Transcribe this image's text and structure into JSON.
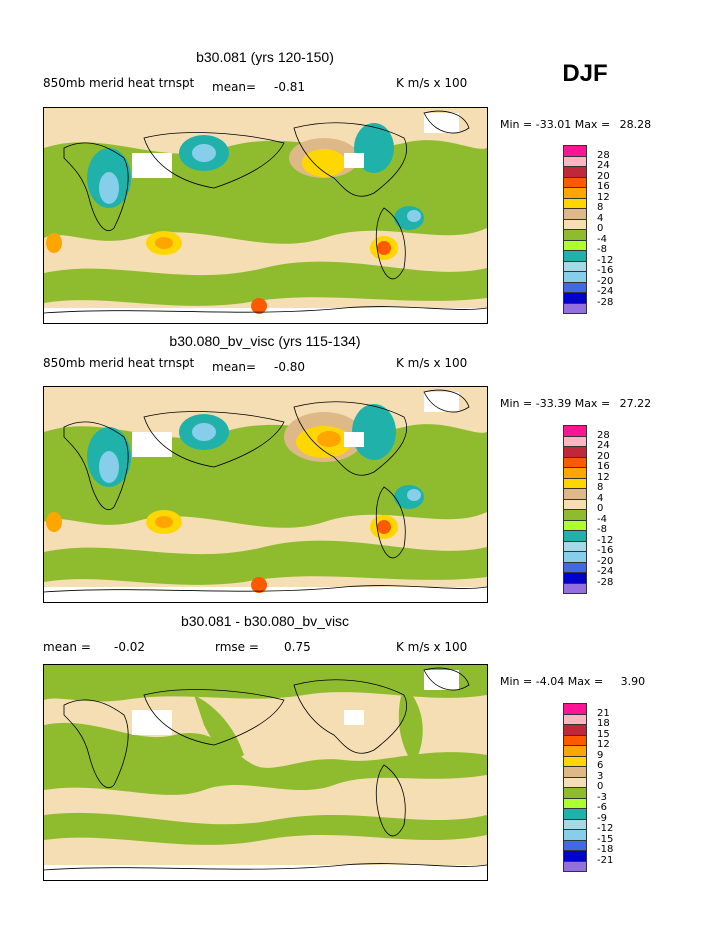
{
  "season": "DJF",
  "panels": [
    {
      "title": "b30.081 (yrs 120-150)",
      "left_label": "850mb merid heat trnspt",
      "mean_label": "mean=",
      "mean_value": "-0.81",
      "units": "K m/s x 100",
      "min_label": "Min =",
      "min_value": "-33.01",
      "max_label": "Max =",
      "max_value": "28.28",
      "colorbar_labels": [
        "28",
        "24",
        "20",
        "16",
        "12",
        "8",
        "4",
        "0",
        "-4",
        "-8",
        "-12",
        "-16",
        "-20",
        "-24",
        "-28"
      ]
    },
    {
      "title": "b30.080_bv_visc (yrs 115-134)",
      "left_label": "850mb merid heat trnspt",
      "mean_label": "mean=",
      "mean_value": "-0.80",
      "units": "K m/s x 100",
      "min_label": "Min =",
      "min_value": "-33.39",
      "max_label": "Max =",
      "max_value": "27.22",
      "colorbar_labels": [
        "28",
        "24",
        "20",
        "16",
        "12",
        "8",
        "4",
        "0",
        "-4",
        "-8",
        "-12",
        "-16",
        "-20",
        "-24",
        "-28"
      ]
    },
    {
      "title": "b30.081 - b30.080_bv_visc",
      "left_label": "mean =",
      "mean_label": "rmse =",
      "mean_value": "-0.02",
      "rmse_value": "0.75",
      "units": "K m/s x 100",
      "min_label": "Min =",
      "min_value": "-4.04",
      "max_label": "Max =",
      "max_value": "3.90",
      "colorbar_labels": [
        "21",
        "18",
        "15",
        "12",
        "9",
        "6",
        "3",
        "0",
        "-3",
        "-6",
        "-9",
        "-12",
        "-15",
        "-18",
        "-21"
      ]
    }
  ],
  "colorbar_colors": [
    "#ff1493",
    "#ffb6c1",
    "#c0283a",
    "#ff5a00",
    "#ffa500",
    "#ffd700",
    "#deb887",
    "#f5deb3",
    "#8fbc2f",
    "#adff2f",
    "#20b2aa",
    "#a6d9e8",
    "#87ceeb",
    "#4169e1",
    "#0000cd",
    "#9370db"
  ],
  "chart_data": [
    {
      "type": "heatmap",
      "title": "b30.081 (yrs 120-150)",
      "variable": "850mb merid heat trnspt",
      "units": "K m/s x 100",
      "mean": -0.81,
      "min": -33.01,
      "max": 28.28,
      "levels": [
        -28,
        -24,
        -20,
        -16,
        -12,
        -8,
        -4,
        0,
        4,
        8,
        12,
        16,
        20,
        24,
        28
      ]
    },
    {
      "type": "heatmap",
      "title": "b30.080_bv_visc (yrs 115-134)",
      "variable": "850mb merid heat trnspt",
      "units": "K m/s x 100",
      "mean": -0.8,
      "min": -33.39,
      "max": 27.22,
      "levels": [
        -28,
        -24,
        -20,
        -16,
        -12,
        -8,
        -4,
        0,
        4,
        8,
        12,
        16,
        20,
        24,
        28
      ]
    },
    {
      "type": "heatmap",
      "title": "b30.081 - b30.080_bv_visc",
      "units": "K m/s x 100",
      "mean": -0.02,
      "rmse": 0.75,
      "min": -4.04,
      "max": 3.9,
      "levels": [
        -21,
        -18,
        -15,
        -12,
        -9,
        -6,
        -3,
        0,
        3,
        6,
        9,
        12,
        15,
        18,
        21
      ]
    }
  ]
}
